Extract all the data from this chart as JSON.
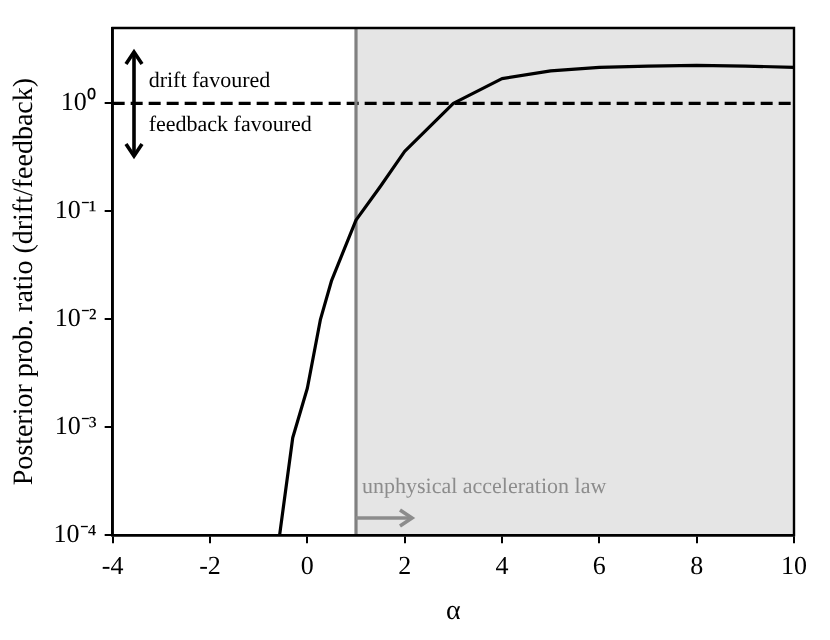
{
  "chart_data": {
    "type": "line",
    "xlabel": "α",
    "ylabel": "Posterior prob. ratio (drift/feedback)",
    "log": "y",
    "x": [
      -0.57,
      -0.3,
      0,
      0.27,
      0.5,
      1,
      1.5,
      2,
      3,
      4,
      5,
      6,
      7,
      8,
      9,
      10
    ],
    "series": [
      {
        "color": "#000000",
        "values": [
          0.0001,
          0.0008,
          0.0023,
          0.01,
          0.023,
          0.083,
          0.17,
          0.36,
          1,
          1.7,
          2.0,
          2.16,
          2.22,
          2.25,
          2.22,
          2.16
        ]
      }
    ],
    "xlim": [
      -4,
      10
    ],
    "xticks": [
      -4,
      -2,
      0,
      2,
      4,
      6,
      8,
      10
    ],
    "ylim": [
      0.0001,
      5
    ],
    "yticks": [
      {
        "value": 0.0001,
        "label": "10⁻⁴"
      },
      {
        "value": 0.001,
        "label": "10⁻³"
      },
      {
        "value": 0.01,
        "label": "10⁻²"
      },
      {
        "value": 0.1,
        "label": "10⁻¹"
      },
      {
        "value": 1,
        "label": "10⁰"
      }
    ],
    "ref_lines": [
      {
        "axis": "y",
        "value": 1,
        "color": "#000000",
        "line_style": "dashed"
      },
      {
        "axis": "x",
        "value": 1,
        "color": "#808080",
        "line_style": "solid"
      }
    ],
    "bands": [
      {
        "axis": "x",
        "from": 1,
        "to": 10,
        "color": "#e5e5e5"
      }
    ],
    "annotations": [
      "drift favoured",
      "feedback favoured",
      "unphysical acceleration law"
    ],
    "grid": false,
    "legend": false,
    "marker": "none",
    "line_style": "solid"
  }
}
